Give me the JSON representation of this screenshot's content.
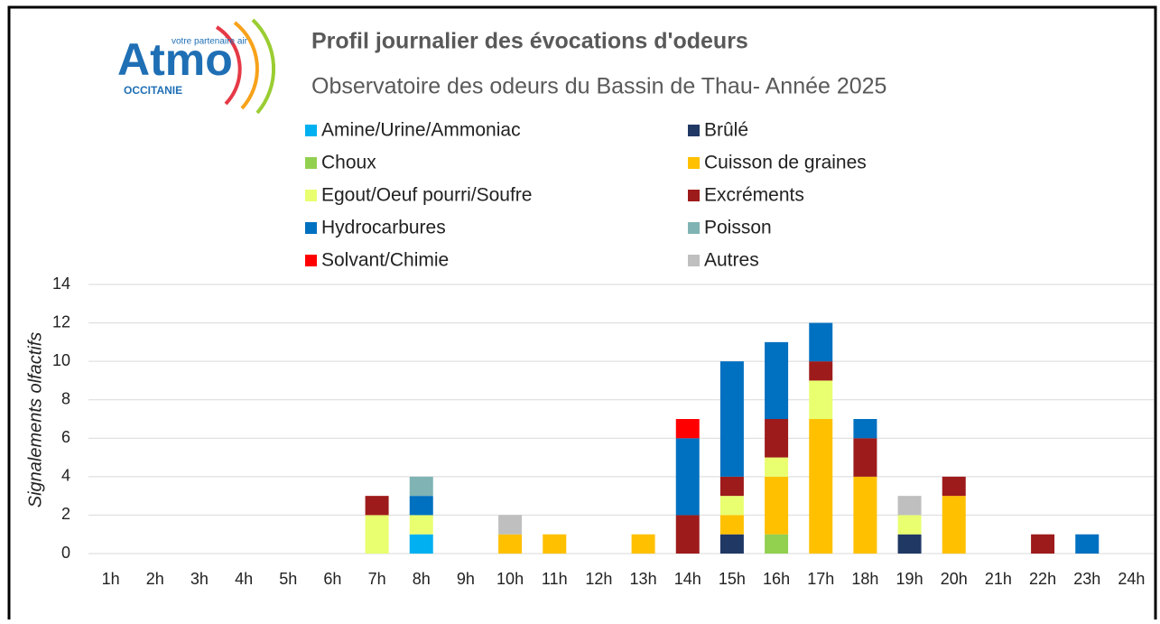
{
  "logo": {
    "brand": "Atmo",
    "tagline": "votre partenaire air",
    "region": "OCCITANIE"
  },
  "chart_data": {
    "type": "stacked_bar",
    "title": "Profil journalier des évocations d'odeurs",
    "subtitle": "Observatoire des odeurs du Bassin de Thau- Année 2025",
    "y_label": "Signalements olfactifs",
    "categories": [
      "1h",
      "2h",
      "3h",
      "4h",
      "5h",
      "6h",
      "7h",
      "8h",
      "9h",
      "10h",
      "11h",
      "12h",
      "13h",
      "14h",
      "15h",
      "16h",
      "17h",
      "18h",
      "19h",
      "20h",
      "21h",
      "22h",
      "23h",
      "24h"
    ],
    "series": [
      {
        "name": "Amine/Urine/Ammoniac",
        "color": "#00b0f0",
        "values": [
          0,
          0,
          0,
          0,
          0,
          0,
          0,
          1,
          0,
          0,
          0,
          0,
          0,
          0,
          0,
          0,
          0,
          0,
          0,
          0,
          0,
          0,
          0,
          0
        ]
      },
      {
        "name": "Brûlé",
        "color": "#203864",
        "values": [
          0,
          0,
          0,
          0,
          0,
          0,
          0,
          0,
          0,
          0,
          0,
          0,
          0,
          0,
          1,
          0,
          0,
          0,
          1,
          0,
          0,
          0,
          0,
          0
        ]
      },
      {
        "name": "Choux",
        "color": "#92d050",
        "values": [
          0,
          0,
          0,
          0,
          0,
          0,
          0,
          0,
          0,
          0,
          0,
          0,
          0,
          0,
          0,
          1,
          0,
          0,
          0,
          0,
          0,
          0,
          0,
          0
        ]
      },
      {
        "name": "Cuisson de graines",
        "color": "#ffc000",
        "values": [
          0,
          0,
          0,
          0,
          0,
          0,
          0,
          0,
          0,
          1,
          1,
          0,
          1,
          0,
          1,
          3,
          7,
          4,
          0,
          3,
          0,
          0,
          0,
          0
        ]
      },
      {
        "name": "Egout/Oeuf pourri/Soufre",
        "color": "#e9ff70",
        "values": [
          0,
          0,
          0,
          0,
          0,
          0,
          2,
          1,
          0,
          0,
          0,
          0,
          0,
          0,
          1,
          1,
          2,
          0,
          1,
          0,
          0,
          0,
          0,
          0
        ]
      },
      {
        "name": "Excréments",
        "color": "#9e1b1b",
        "values": [
          0,
          0,
          0,
          0,
          0,
          0,
          1,
          0,
          0,
          0,
          0,
          0,
          0,
          2,
          1,
          2,
          1,
          2,
          0,
          1,
          0,
          1,
          0,
          0
        ]
      },
      {
        "name": "Hydrocarbures",
        "color": "#0070c0",
        "values": [
          0,
          0,
          0,
          0,
          0,
          0,
          0,
          1,
          0,
          0,
          0,
          0,
          0,
          4,
          6,
          4,
          2,
          1,
          0,
          0,
          0,
          0,
          1,
          0
        ]
      },
      {
        "name": "Poisson",
        "color": "#80b3b3",
        "values": [
          0,
          0,
          0,
          0,
          0,
          0,
          0,
          1,
          0,
          0,
          0,
          0,
          0,
          0,
          0,
          0,
          0,
          0,
          0,
          0,
          0,
          0,
          0,
          0
        ]
      },
      {
        "name": "Solvant/Chimie",
        "color": "#ff0000",
        "values": [
          0,
          0,
          0,
          0,
          0,
          0,
          0,
          0,
          0,
          0,
          0,
          0,
          0,
          1,
          0,
          0,
          0,
          0,
          0,
          0,
          0,
          0,
          0,
          0
        ]
      },
      {
        "name": "Autres",
        "color": "#bfbfbf",
        "values": [
          0,
          0,
          0,
          0,
          0,
          0,
          0,
          0,
          0,
          1,
          0,
          0,
          0,
          0,
          0,
          0,
          0,
          0,
          1,
          0,
          0,
          0,
          0,
          0
        ]
      }
    ],
    "ylim": [
      0,
      14
    ],
    "yticks": [
      0,
      2,
      4,
      6,
      8,
      10,
      12,
      14
    ],
    "grid": true
  }
}
